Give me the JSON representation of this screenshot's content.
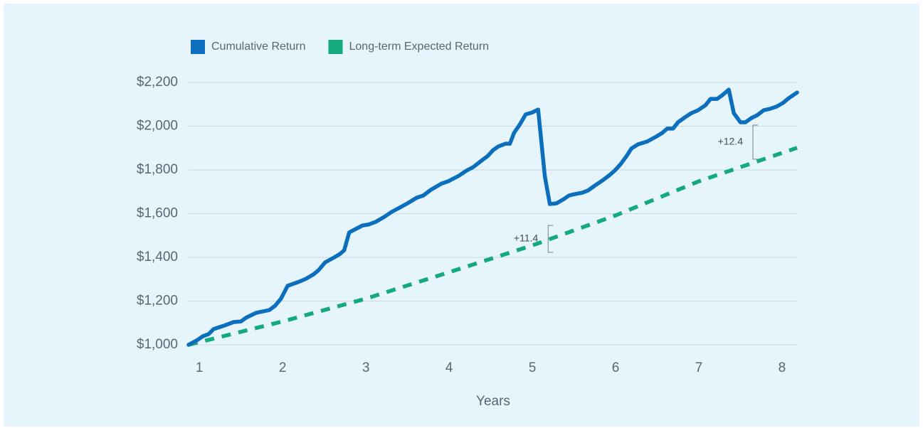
{
  "chart_data": {
    "type": "line",
    "x_label": "Years",
    "xlim": [
      0.87,
      8.18
    ],
    "xticks": [
      1,
      2,
      3,
      4,
      5,
      6,
      7,
      8
    ],
    "ylim": [
      1000,
      2200
    ],
    "yticks": [
      {
        "value": 1000,
        "label": "$1,000"
      },
      {
        "value": 1200,
        "label": "$1,200"
      },
      {
        "value": 1400,
        "label": "$1,400"
      },
      {
        "value": 1600,
        "label": "$1,600"
      },
      {
        "value": 1800,
        "label": "$1,800"
      },
      {
        "value": 2000,
        "label": "$2,000"
      },
      {
        "value": 2200,
        "label": "$2,200"
      }
    ],
    "grid": true,
    "legend": "top-left",
    "series": [
      {
        "name": "Cumulative Return",
        "color": "#0b6fbe",
        "style": "solid",
        "x": [
          0.87,
          0.98,
          1.04,
          1.11,
          1.17,
          1.3,
          1.41,
          1.5,
          1.56,
          1.68,
          1.84,
          1.91,
          1.98,
          2.06,
          2.2,
          2.28,
          2.37,
          2.43,
          2.51,
          2.62,
          2.69,
          2.74,
          2.8,
          2.88,
          2.96,
          3.03,
          3.12,
          3.22,
          3.31,
          3.39,
          3.5,
          3.61,
          3.69,
          3.78,
          3.91,
          3.99,
          4.12,
          4.21,
          4.29,
          4.4,
          4.46,
          4.53,
          4.59,
          4.68,
          4.73,
          4.78,
          4.85,
          4.92,
          5.0,
          5.07,
          5.15,
          5.21,
          5.29,
          5.38,
          5.44,
          5.51,
          5.6,
          5.67,
          5.75,
          5.84,
          5.92,
          5.99,
          6.06,
          6.13,
          6.19,
          6.27,
          6.38,
          6.49,
          6.56,
          6.62,
          6.69,
          6.75,
          6.82,
          6.91,
          6.99,
          7.08,
          7.14,
          7.22,
          7.28,
          7.36,
          7.42,
          7.5,
          7.56,
          7.63,
          7.7,
          7.78,
          7.85,
          7.93,
          8.01,
          8.08,
          8.18
        ],
        "values": [
          1000,
          1023,
          1039,
          1049,
          1072,
          1088,
          1104,
          1107,
          1124,
          1146,
          1159,
          1179,
          1211,
          1270,
          1289,
          1302,
          1322,
          1341,
          1377,
          1400,
          1416,
          1433,
          1514,
          1530,
          1546,
          1550,
          1563,
          1585,
          1608,
          1624,
          1647,
          1673,
          1683,
          1709,
          1738,
          1748,
          1774,
          1797,
          1813,
          1846,
          1862,
          1891,
          1907,
          1920,
          1920,
          1969,
          2008,
          2054,
          2063,
          2076,
          1771,
          1644,
          1647,
          1667,
          1683,
          1689,
          1696,
          1706,
          1728,
          1751,
          1774,
          1797,
          1826,
          1862,
          1898,
          1917,
          1930,
          1953,
          1969,
          1989,
          1989,
          2018,
          2037,
          2060,
          2073,
          2096,
          2125,
          2125,
          2141,
          2167,
          2060,
          2018,
          2018,
          2037,
          2050,
          2073,
          2079,
          2089,
          2106,
          2128,
          2154
        ]
      },
      {
        "name": "Long-term Expected Return",
        "color": "#15a97f",
        "style": "dashed",
        "x": [
          0.87,
          2,
          3,
          4,
          5,
          6,
          7,
          8.18
        ],
        "values": [
          1000,
          1107,
          1211,
          1332,
          1455,
          1592,
          1748,
          1901
        ]
      }
    ],
    "annotations": [
      {
        "text": "+11.4",
        "x": 5.19,
        "y1": 1423,
        "y2": 1546
      },
      {
        "text": "+12.4",
        "x": 7.65,
        "y1": 1849,
        "y2": 2005
      }
    ]
  }
}
